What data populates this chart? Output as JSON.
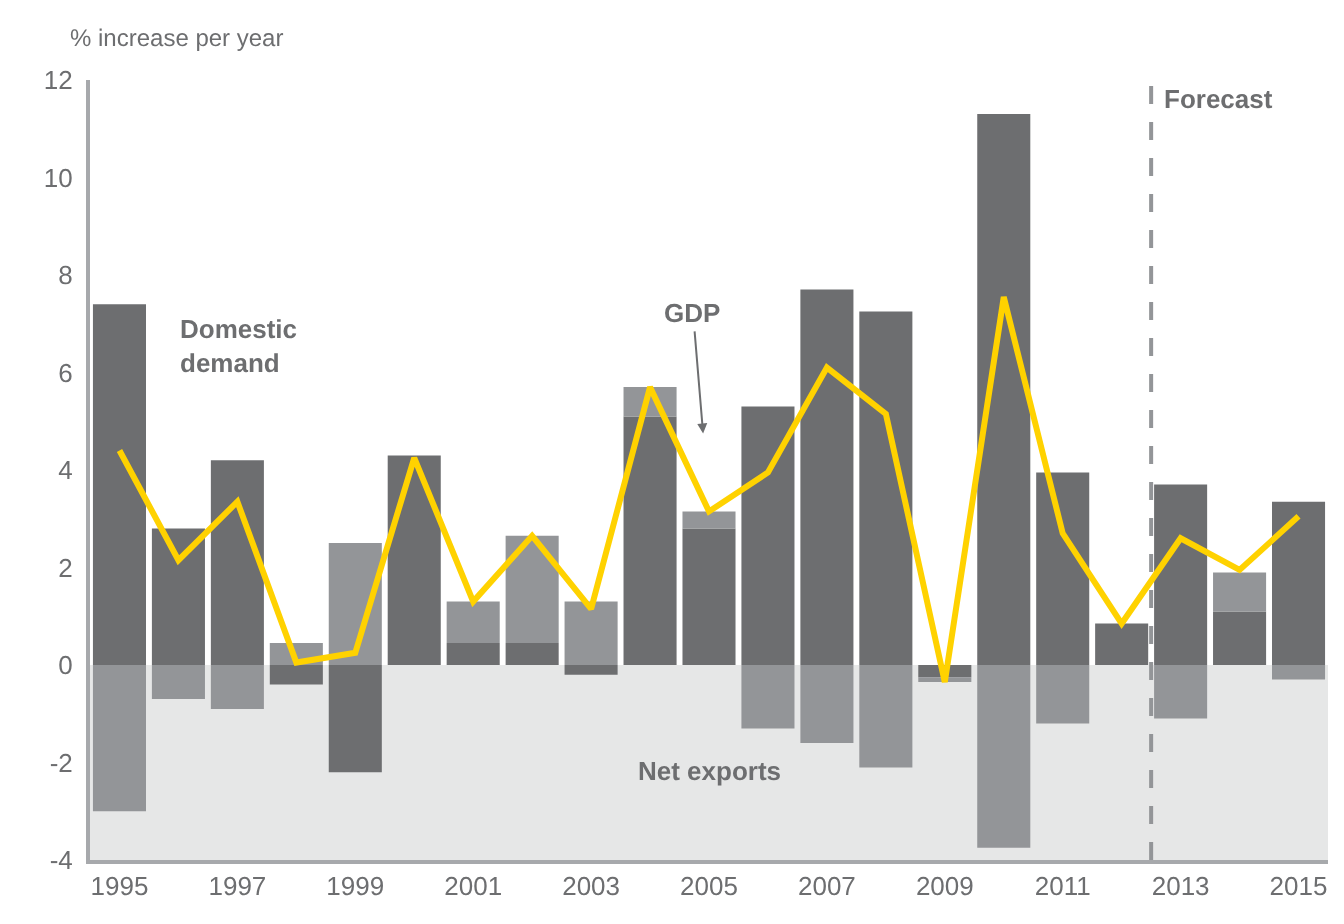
{
  "chart_data": {
    "type": "bar",
    "stacked": true,
    "ylabel": "% increase per year",
    "x": [
      1995,
      1996,
      1997,
      1998,
      1999,
      2000,
      2001,
      2002,
      2003,
      2004,
      2005,
      2006,
      2007,
      2008,
      2009,
      2010,
      2011,
      2012,
      2013,
      2014,
      2015
    ],
    "xlim": [
      1994.5,
      2015.5
    ],
    "xticks": [
      1995,
      1997,
      1999,
      2001,
      2003,
      2005,
      2007,
      2009,
      2011,
      2013,
      2015
    ],
    "ylim": [
      -4,
      12
    ],
    "yticks": [
      -4,
      -2,
      0,
      2,
      4,
      6,
      8,
      10,
      12
    ],
    "series": [
      {
        "name": "Domestic demand",
        "color": "#6d6e70",
        "values": [
          7.4,
          2.8,
          4.2,
          -0.4,
          -2.2,
          4.3,
          0.45,
          0.45,
          -0.2,
          5.1,
          2.8,
          5.3,
          7.7,
          7.25,
          -0.25,
          11.3,
          3.95,
          0.85,
          3.7,
          1.1,
          3.35
        ]
      },
      {
        "name": "Net exports",
        "color": "#939598",
        "values": [
          -3.0,
          -0.7,
          -0.9,
          0.45,
          2.5,
          0,
          0.85,
          2.2,
          1.3,
          0.6,
          0.35,
          -1.3,
          -1.6,
          -2.1,
          -0.1,
          -3.75,
          -1.2,
          0,
          -1.1,
          0.8,
          -0.3
        ]
      },
      {
        "name": "GDP",
        "type": "line",
        "color": "#ffd200",
        "values": [
          4.4,
          2.15,
          3.35,
          0.05,
          0.25,
          4.25,
          1.3,
          2.65,
          1.15,
          5.7,
          3.15,
          3.95,
          6.1,
          5.15,
          -0.35,
          7.55,
          2.7,
          0.85,
          2.6,
          1.95,
          3.05
        ]
      }
    ],
    "bands": [
      {
        "axis": "y",
        "from": -4,
        "to": 0,
        "color": "#e6e7e7"
      }
    ],
    "ref_lines": [
      {
        "axis": "x",
        "value": 2012.5,
        "label": "Forecast",
        "color": "#939598",
        "line_style": "dashed"
      }
    ],
    "grid": false,
    "legend": false,
    "marker": "none",
    "line_style": "solid"
  }
}
